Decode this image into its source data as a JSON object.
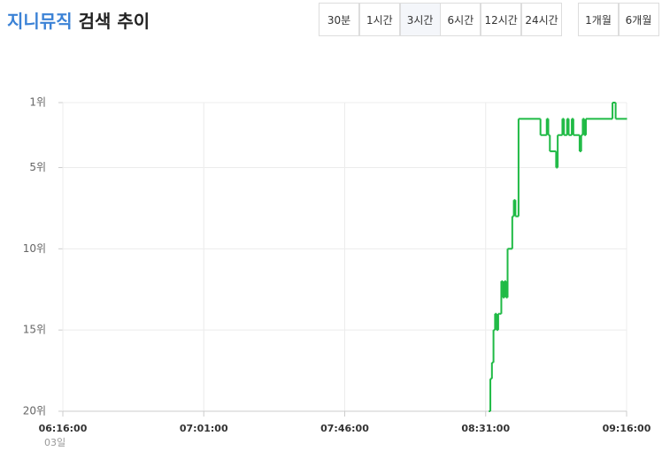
{
  "header": {
    "brand": "지니뮤직",
    "title": "검색 추이"
  },
  "period_buttons": [
    "30분",
    "1시간",
    "3시간",
    "6시간",
    "12시간",
    "24시간"
  ],
  "month_buttons": [
    "1개월",
    "6개월"
  ],
  "selected_period": 2,
  "chart_data": {
    "type": "line",
    "step": true,
    "color": "#1fba45",
    "grid": true,
    "x": [
      "08:32:00",
      "08:32:30",
      "08:33:00",
      "08:33:30",
      "08:34:00",
      "08:34:30",
      "08:35:00",
      "08:35:30",
      "08:36:00",
      "08:36:30",
      "08:37:00",
      "08:37:30",
      "08:38:00",
      "08:39:30",
      "08:40:00",
      "08:40:30",
      "08:41:30",
      "08:48:30",
      "08:50:30",
      "08:51:00",
      "08:51:30",
      "08:53:30",
      "08:54:00",
      "08:55:30",
      "08:56:00",
      "08:57:00",
      "08:57:30",
      "08:58:30",
      "08:59:00",
      "09:01:00",
      "09:01:30",
      "09:02:00",
      "09:02:30",
      "09:03:00",
      "09:11:30",
      "09:12:30",
      "09:16:00"
    ],
    "values": [
      20,
      18,
      17,
      15,
      14,
      15,
      14,
      14,
      12,
      13,
      12,
      13,
      10,
      8,
      7,
      8,
      2,
      3,
      2,
      3,
      4,
      5,
      3,
      2,
      3,
      2,
      3,
      2,
      3,
      4,
      3,
      2,
      3,
      2,
      1,
      2,
      2
    ],
    "xlim": [
      "06:16:00",
      "09:16:00"
    ],
    "xticks": [
      "06:16:00",
      "07:01:00",
      "07:46:00",
      "08:31:00",
      "09:16:00"
    ],
    "x_sublabel": "03일",
    "ylim": [
      20,
      1
    ],
    "yticks": [
      {
        "value": 1,
        "label": "1위"
      },
      {
        "value": 5,
        "label": "5위"
      },
      {
        "value": 10,
        "label": "10위"
      },
      {
        "value": 15,
        "label": "15위"
      },
      {
        "value": 20,
        "label": "20위"
      }
    ]
  }
}
